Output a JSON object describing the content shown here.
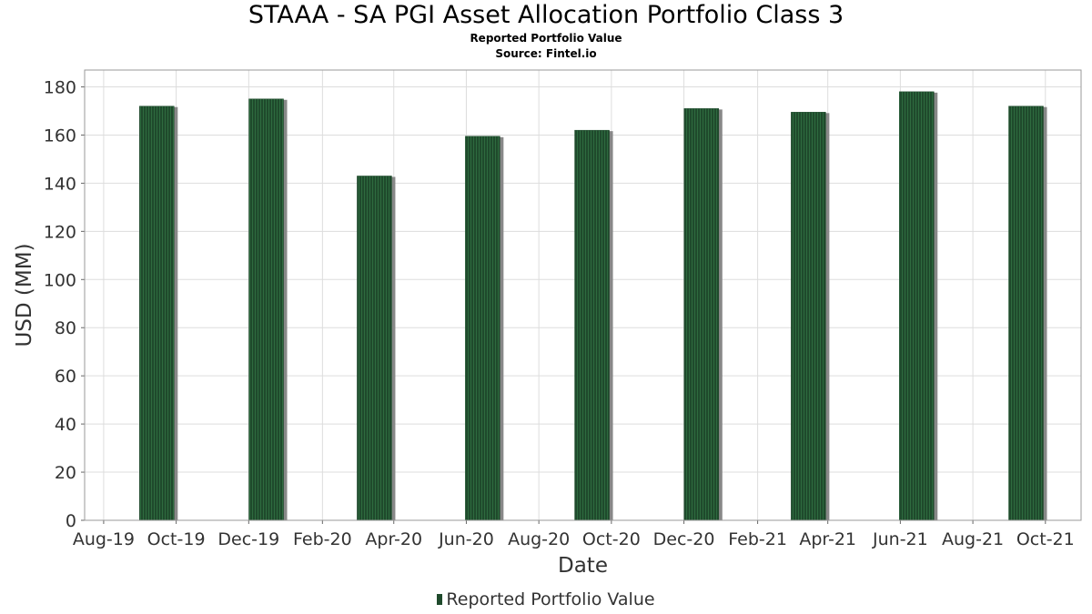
{
  "header": {
    "title": "STAAA - SA PGI Asset Allocation Portfolio Class 3",
    "subtitle": "Reported Portfolio Value",
    "source": "Source: Fintel.io"
  },
  "legend": {
    "label": "Reported Portfolio Value"
  },
  "colors": {
    "bar": "#1f4a2c",
    "bar_stripe": "#2e6b3f",
    "bar_shadow": "#888888",
    "grid": "#dddddd",
    "plot_border": "#999999"
  },
  "chart_data": {
    "type": "bar",
    "title": "STAAA - SA PGI Asset Allocation Portfolio Class 3",
    "subtitle": "Reported Portfolio Value",
    "xlabel": "Date",
    "ylabel": "USD (MM)",
    "ylim": [
      0,
      187
    ],
    "yticks": [
      0,
      20,
      40,
      60,
      80,
      100,
      120,
      140,
      160,
      180
    ],
    "xlim": [
      "2019-07-16",
      "2021-10-31"
    ],
    "xticks": [
      {
        "date": "2019-08-01",
        "label": "Aug-19"
      },
      {
        "date": "2019-10-01",
        "label": "Oct-19"
      },
      {
        "date": "2019-12-01",
        "label": "Dec-19"
      },
      {
        "date": "2020-02-01",
        "label": "Feb-20"
      },
      {
        "date": "2020-04-01",
        "label": "Apr-20"
      },
      {
        "date": "2020-06-01",
        "label": "Jun-20"
      },
      {
        "date": "2020-08-01",
        "label": "Aug-20"
      },
      {
        "date": "2020-10-01",
        "label": "Oct-20"
      },
      {
        "date": "2020-12-01",
        "label": "Dec-20"
      },
      {
        "date": "2021-02-01",
        "label": "Feb-21"
      },
      {
        "date": "2021-04-01",
        "label": "Apr-21"
      },
      {
        "date": "2021-06-01",
        "label": "Jun-21"
      },
      {
        "date": "2021-08-01",
        "label": "Aug-21"
      },
      {
        "date": "2021-10-01",
        "label": "Oct-21"
      }
    ],
    "grid": true,
    "legend_position": "bottom-center",
    "series": [
      {
        "name": "Reported Portfolio Value",
        "points": [
          {
            "date": "2019-09-30",
            "value": 172
          },
          {
            "date": "2019-12-31",
            "value": 175
          },
          {
            "date": "2020-03-31",
            "value": 143
          },
          {
            "date": "2020-06-30",
            "value": 159.5
          },
          {
            "date": "2020-09-30",
            "value": 162
          },
          {
            "date": "2020-12-31",
            "value": 171
          },
          {
            "date": "2021-03-31",
            "value": 169.5
          },
          {
            "date": "2021-06-30",
            "value": 178
          },
          {
            "date": "2021-09-30",
            "value": 172
          }
        ]
      }
    ]
  }
}
